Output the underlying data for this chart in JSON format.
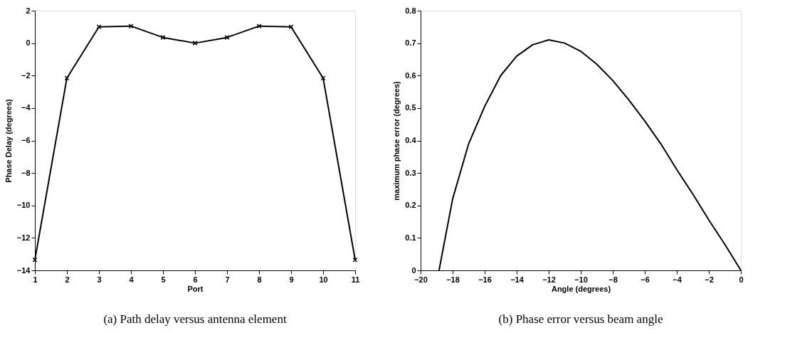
{
  "chart_data": [
    {
      "type": "line",
      "xlabel": "Port",
      "ylabel": "Phase Delay (degrees)",
      "x": [
        1,
        2,
        3,
        4,
        5,
        6,
        7,
        8,
        9,
        10,
        11
      ],
      "series": [
        {
          "color": "#000000",
          "values": [
            -13.35,
            -2.15,
            1.0,
            1.05,
            0.35,
            0.0,
            0.35,
            1.05,
            1.0,
            -2.15,
            -13.35
          ]
        }
      ],
      "xlim": [
        1,
        11
      ],
      "xticks": [
        1,
        2,
        3,
        4,
        5,
        6,
        7,
        8,
        9,
        10,
        11
      ],
      "ylim": [
        -14,
        2
      ],
      "yticks": [
        -14,
        -12,
        -10,
        -8,
        -6,
        -4,
        -2,
        0,
        2
      ],
      "marker": "cross",
      "line_style": "solid",
      "grid": false,
      "annotations": [
        "(a) Path delay versus antenna element"
      ]
    },
    {
      "type": "line",
      "xlabel": "Angle (degrees)",
      "ylabel": "maximum phase error (degrees)",
      "x": [
        -18.85,
        -18,
        -17,
        -16,
        -15,
        -14,
        -13,
        -12,
        -11,
        -10,
        -9,
        -8,
        -7,
        -6,
        -5,
        -4,
        -3,
        -2,
        -1,
        0
      ],
      "series": [
        {
          "color": "#000000",
          "values": [
            0,
            0.22,
            0.39,
            0.505,
            0.6,
            0.66,
            0.695,
            0.71,
            0.7,
            0.675,
            0.635,
            0.585,
            0.525,
            0.46,
            0.39,
            0.31,
            0.235,
            0.155,
            0.08,
            0
          ]
        }
      ],
      "xlim": [
        -20,
        0
      ],
      "xticks": [
        -20,
        -18,
        -16,
        -14,
        -12,
        -10,
        -8,
        -6,
        -4,
        -2,
        0
      ],
      "ylim": [
        0,
        0.8
      ],
      "yticks": [
        0,
        0.1,
        0.2,
        0.3,
        0.4,
        0.5,
        0.6,
        0.7,
        0.8
      ],
      "marker": "none",
      "line_style": "solid",
      "grid": false,
      "annotations": [
        "(b) Phase error versus beam angle"
      ]
    }
  ]
}
